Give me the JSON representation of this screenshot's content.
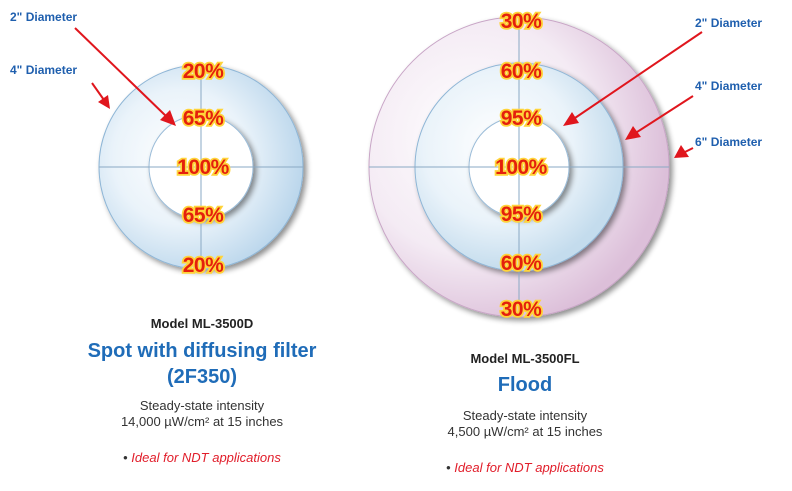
{
  "left": {
    "labels": {
      "d2": "2\" Diameter",
      "d4": "4\" Diameter"
    },
    "percents": [
      "20%",
      "65%",
      "100%",
      "65%",
      "20%"
    ],
    "model": "Model ML-3500D",
    "title_line1": "Spot with diffusing filter",
    "title_line2": "(2F350)",
    "intensity_line1": "Steady-state intensity",
    "intensity_line2": "14,000 µW/cm² at 15 inches",
    "bullet_mark": "•",
    "bullet_text": "Ideal for NDT applications"
  },
  "right": {
    "labels": {
      "d2": "2\" Diameter",
      "d4": "4\" Diameter",
      "d6": "6\" Diameter"
    },
    "percents": [
      "30%",
      "60%",
      "95%",
      "100%",
      "95%",
      "60%",
      "30%"
    ],
    "model": "Model ML-3500FL",
    "title": "Flood",
    "intensity_line1": "Steady-state intensity",
    "intensity_line2": "4,500 µW/cm² at 15 inches",
    "bullet_mark": "•",
    "bullet_text": "Ideal for NDT applications"
  },
  "colors": {
    "ring_blue": "#d6e8f5",
    "ring_pink": "#ecd5e8",
    "percent_text": "#e4200c",
    "percent_outline": "#ffd43a",
    "label_blue": "#1f5fae",
    "arrow_red": "#e0161d",
    "title_blue": "#1f6cb8",
    "bullet_red": "#e11d2a"
  }
}
